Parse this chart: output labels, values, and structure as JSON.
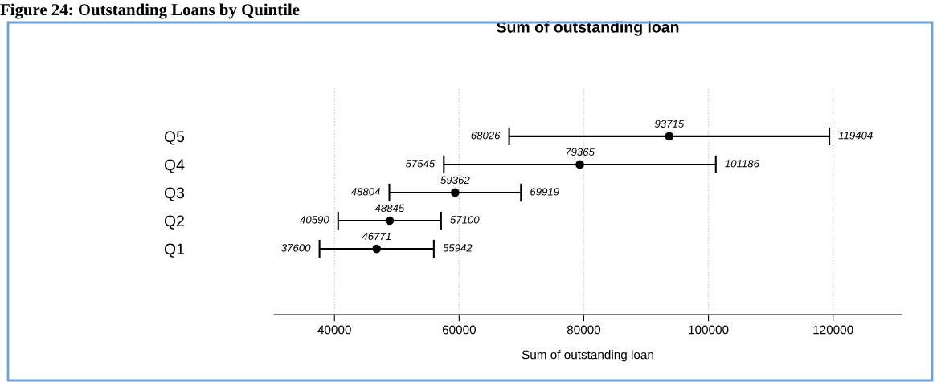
{
  "chart_data": {
    "type": "scatter",
    "orientation": "horizontal",
    "title": "Sum of outstanding loan",
    "subtitle": "Figure 24: Outstanding Loans by Quintile",
    "xlabel": "Sum of outstanding loan",
    "categories": [
      "Q5",
      "Q4",
      "Q3",
      "Q2",
      "Q1"
    ],
    "values": [
      93715,
      79365,
      59362,
      48845,
      46771
    ],
    "errors": [
      [
        68026,
        119404
      ],
      [
        57545,
        101186
      ],
      [
        48804,
        69919
      ],
      [
        40590,
        57100
      ],
      [
        37600,
        55942
      ]
    ],
    "color": "#000000",
    "marker": "circle",
    "data_labels": true,
    "xlim": [
      30300,
      131000
    ],
    "xticks": [
      40000,
      60000,
      80000,
      100000,
      120000
    ],
    "grid": "x",
    "legend": false,
    "annotations": [
      "68026",
      "119404",
      "57545",
      "101186",
      "48804",
      "69919",
      "40590",
      "57100",
      "37600",
      "55942"
    ]
  }
}
